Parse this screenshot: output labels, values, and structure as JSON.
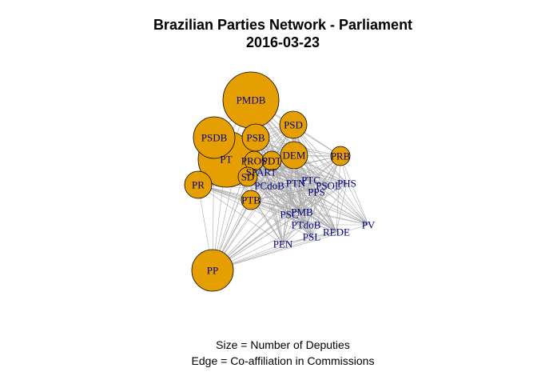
{
  "title": "Brazilian Parties Network - Parliament",
  "subtitle": "2016-03-23",
  "caption_size": "Size = Number of Deputies",
  "caption_edge": "Edge = Co-affiliation in Commissions",
  "colors": {
    "node_fill": "#e69f00",
    "node_stroke": "#000000",
    "label": "#000080",
    "edge": "#a9a9a9"
  },
  "nodes": [
    {
      "label": "PMDB",
      "size": "xl"
    },
    {
      "label": "PT",
      "size": "xl"
    },
    {
      "label": "PP",
      "size": "lg"
    },
    {
      "label": "PSDB",
      "size": "lg"
    },
    {
      "label": "PSB",
      "size": "md"
    },
    {
      "label": "PR",
      "size": "md"
    },
    {
      "label": "PSD",
      "size": "md"
    },
    {
      "label": "DEM",
      "size": "md"
    },
    {
      "label": "PRB",
      "size": "sm"
    },
    {
      "label": "PROS",
      "size": "sm"
    },
    {
      "label": "PDT",
      "size": "sm"
    },
    {
      "label": "SD",
      "size": "sm"
    },
    {
      "label": "PTB",
      "size": "sm"
    },
    {
      "label": "PCdoB",
      "size": "xs"
    },
    {
      "label": "PTN",
      "size": "xs"
    },
    {
      "label": "PTC",
      "size": "xs"
    },
    {
      "label": "PSOL",
      "size": "xs"
    },
    {
      "label": "PPS",
      "size": "xs"
    },
    {
      "label": "PHS",
      "size": "xs"
    },
    {
      "label": "PMB",
      "size": "xs"
    },
    {
      "label": "PSC",
      "size": "xs"
    },
    {
      "label": "PTdoB",
      "size": "xs"
    },
    {
      "label": "PSL",
      "size": "xs"
    },
    {
      "label": "REDE",
      "size": "xs"
    },
    {
      "label": "PV",
      "size": "xs"
    },
    {
      "label": "PEN",
      "size": "xs"
    },
    {
      "label": "SPART",
      "size": "xs"
    }
  ]
}
